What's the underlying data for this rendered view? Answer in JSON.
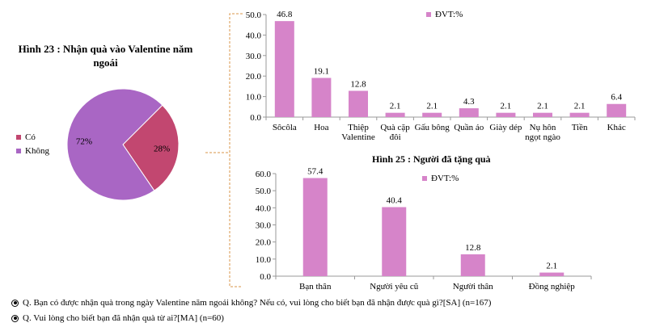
{
  "colors": {
    "co": "#c24770",
    "khong": "#a966c4",
    "bar": "#d684c9",
    "axis": "#999999",
    "bracket": "#d9954a"
  },
  "pie": {
    "title_line1": "Hình 23 : Nhận quà vào Valentine năm",
    "title_line2": "ngoái",
    "legend": [
      {
        "label": "Có",
        "color": "#c24770"
      },
      {
        "label": "Không",
        "color": "#a966c4"
      }
    ]
  },
  "bar1": {
    "unit_label": "ĐVT:%"
  },
  "bar2": {
    "title": "Hình 25 : Người đã tặng quà",
    "unit_label": "ĐVT:%"
  },
  "notes": {
    "q1": "Q. Bạn có được nhận quà trong ngày Valentine năm ngoái không? Nếu có, vui lòng cho biết bạn đã nhận được quà gì?[SA] (n=167)",
    "q2": "Q. Vui lòng cho biết bạn đã nhận quà từ ai?[MA] (n=60)"
  },
  "chart_data": [
    {
      "type": "pie",
      "title": "Hình 23 : Nhận quà vào Valentine năm ngoái",
      "categories": [
        "Có",
        "Không"
      ],
      "values": [
        28,
        72
      ],
      "data_labels": [
        "28%",
        "72%"
      ],
      "legend": "left"
    },
    {
      "type": "bar",
      "categories": [
        "Sôcôla",
        "Hoa",
        "Thiệp Valentine",
        "Quà cặp đôi",
        "Gấu bông",
        "Quần áo",
        "Giày dép",
        "Nụ hôn ngọt ngào",
        "Tiền",
        "Khác"
      ],
      "category_lines": [
        [
          "Sôcôla"
        ],
        [
          "Hoa"
        ],
        [
          "Thiệp",
          "Valentine"
        ],
        [
          "Quà cặp",
          "đôi"
        ],
        [
          "Gấu bông"
        ],
        [
          "Quần áo"
        ],
        [
          "Giày dép"
        ],
        [
          "Nụ hôn",
          "ngọt ngào"
        ],
        [
          "Tiền"
        ],
        [
          "Khác"
        ]
      ],
      "values": [
        46.8,
        19.1,
        12.8,
        2.1,
        2.1,
        4.3,
        2.1,
        2.1,
        2.1,
        6.4
      ],
      "value_labels": [
        "46.8",
        "19.1",
        "12.8",
        "2.1",
        "2.1",
        "4.3",
        "2.1",
        "2.1",
        "2.1",
        "6.4"
      ],
      "ylim": [
        0,
        50
      ],
      "yticks": [
        0,
        10,
        20,
        30,
        40,
        50
      ],
      "ytick_labels": [
        "0.0",
        "10.0",
        "20.0",
        "30.0",
        "40.0",
        "50.0"
      ],
      "legend": "top-right",
      "grid": false
    },
    {
      "type": "bar",
      "title": "Hình 25 : Người đã tặng quà",
      "categories": [
        "Bạn thân",
        "Người yêu cũ",
        "Người thân",
        "Đồng nghiệp"
      ],
      "category_lines": [
        [
          "Bạn thân"
        ],
        [
          "Người yêu cũ"
        ],
        [
          "Người thân"
        ],
        [
          "Đồng nghiệp"
        ]
      ],
      "values": [
        57.4,
        40.4,
        12.8,
        2.1
      ],
      "value_labels": [
        "57.4",
        "40.4",
        "12.8",
        "2.1"
      ],
      "ylim": [
        0,
        60
      ],
      "yticks": [
        0,
        10,
        20,
        30,
        40,
        50,
        60
      ],
      "ytick_labels": [
        "0.0",
        "10.0",
        "20.0",
        "30.0",
        "40.0",
        "50.0",
        "60.0"
      ],
      "legend": "top-right",
      "grid": false
    }
  ]
}
